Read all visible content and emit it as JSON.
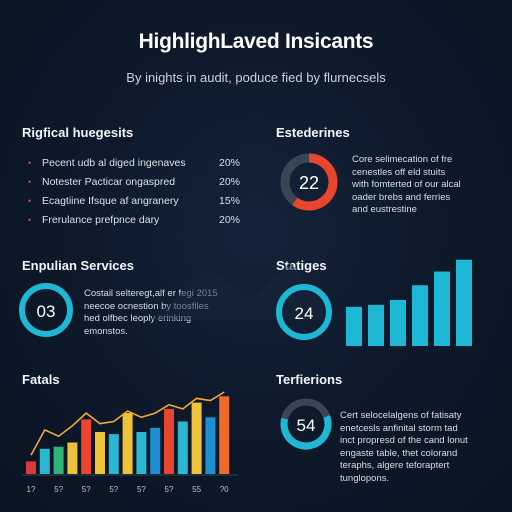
{
  "title": "HighlighLaved Insicants",
  "subtitle": "By inights in audit, poduce fied by flurnecsels",
  "colors": {
    "background": "#0d1829",
    "accent_cyan": "#1eb8d6",
    "accent_red": "#e8452e"
  },
  "sections": {
    "top_left": {
      "heading": "Rigfical huegesits",
      "items": [
        {
          "label": "Pecent udb al diged ingenaves",
          "value": "20%"
        },
        {
          "label": "Notester Pacticar ongaspred",
          "value": "20%"
        },
        {
          "label": "Ecagtiine Ifsque af angranery",
          "value": "15%"
        },
        {
          "label": "Frerulance prefpnce dary",
          "value": "20%"
        }
      ]
    },
    "top_right": {
      "heading": "Estederines",
      "ring_value": "22",
      "ring_fraction": 0.6,
      "text": [
        "Core selimecation of fre",
        "cenestles off eld stuits",
        "with fomterted of our alcal",
        "oader brebs and ferries",
        "and eustrestine"
      ]
    },
    "mid_left": {
      "heading": "Enpulian Services",
      "ring_value": "03",
      "text": [
        "Costail selteregt,alf er fegi 2015",
        "neecoe ocnestion by toosfiles",
        "hed olfbec leoply erinking",
        "emonstos."
      ]
    },
    "mid_right": {
      "heading": "Statiges",
      "ring_value": "24"
    },
    "bottom_left": {
      "heading": "Fatals"
    },
    "bottom_right": {
      "heading": "Terfierions",
      "ring_value": "54",
      "text": [
        "Cert selocelalgens of fatisaty",
        "enetcesls anfinital storm tad",
        "inct propresd of the cand lonut",
        "engaste table, thet colorand",
        "teraphs, algere teforaptert",
        "tunglopons."
      ]
    }
  },
  "chart_data": [
    {
      "type": "bar",
      "title": "Statiges",
      "values": [
        40,
        42,
        47,
        62,
        76,
        88
      ],
      "ylim": [
        0,
        100
      ],
      "color": "#1eb8d6"
    },
    {
      "type": "bar",
      "title": "Fatals",
      "categories": [
        "1?",
        "",
        "5?",
        "",
        "5?",
        "",
        "5?",
        "",
        "5?",
        "",
        "5?",
        "",
        "55",
        "",
        "?0"
      ],
      "series": [
        {
          "values": [
            12,
            24,
            26,
            30,
            52,
            40,
            38,
            58,
            40,
            44,
            62,
            50,
            68,
            54,
            74
          ],
          "colors": [
            "#d83a3a",
            "#2bb6d1",
            "#2fb37a",
            "#f0c23b",
            "#e8452e",
            "#f0c23b",
            "#2bb6d1",
            "#f0c23b",
            "#2bb6d1",
            "#1e8fd0",
            "#e8452e",
            "#2bb6d1",
            "#f0c23b",
            "#1e8fd0",
            "#f06a2a"
          ]
        }
      ],
      "line": [
        18,
        42,
        36,
        46,
        58,
        48,
        50,
        60,
        54,
        58,
        66,
        62,
        72,
        70,
        78
      ],
      "line_color": "#f0a73a",
      "ylim": [
        0,
        80
      ]
    }
  ]
}
